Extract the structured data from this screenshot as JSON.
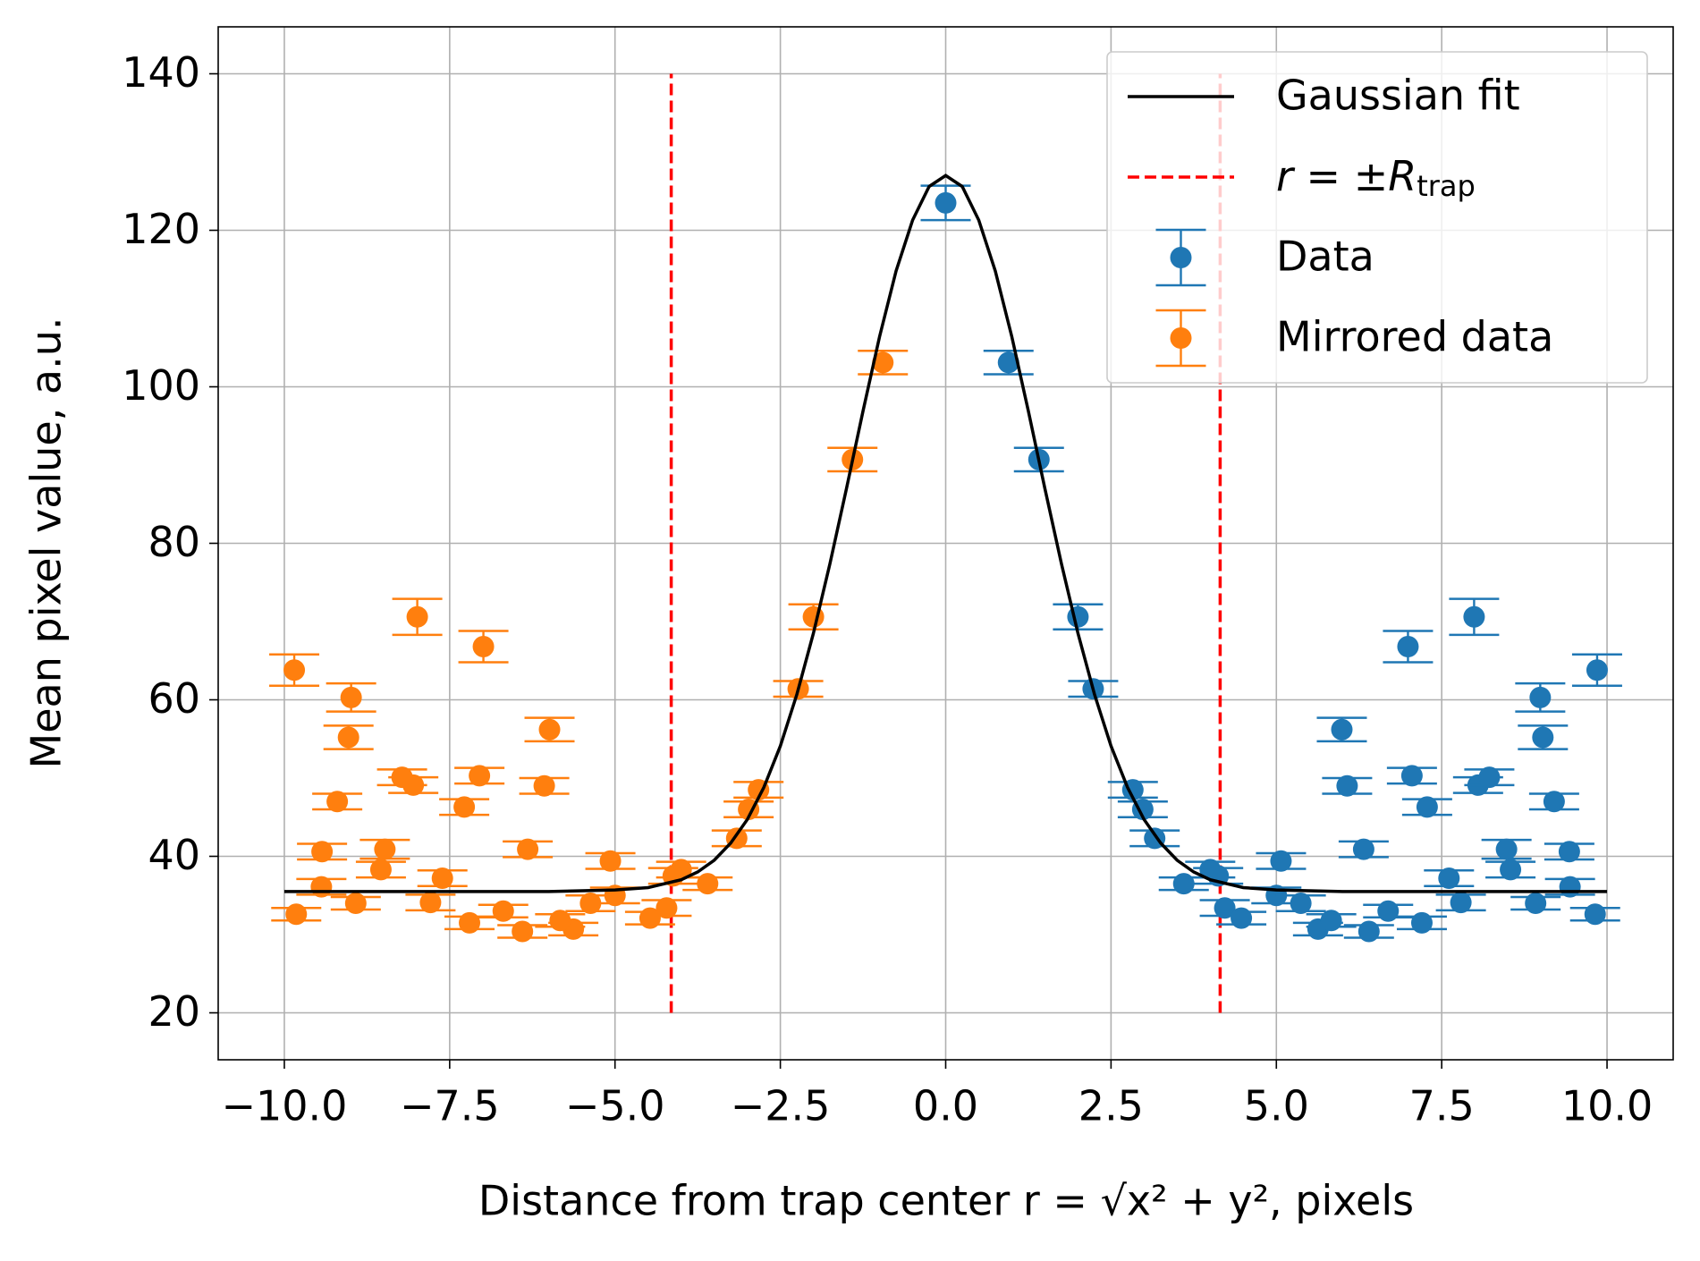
{
  "chart_data": {
    "type": "errorbar",
    "xlabel": "Distance from trap center r = √x² + y², pixels",
    "ylabel": "Mean pixel value, a.u.",
    "xlim": [
      -11,
      11
    ],
    "ylim": [
      14,
      146
    ],
    "xticks": [
      {
        "value": -10,
        "label": "−10.0"
      },
      {
        "value": -7.5,
        "label": "−7.5"
      },
      {
        "value": -5,
        "label": "−5.0"
      },
      {
        "value": -2.5,
        "label": "−2.5"
      },
      {
        "value": 0,
        "label": "0.0"
      },
      {
        "value": 2.5,
        "label": "2.5"
      },
      {
        "value": 5,
        "label": "5.0"
      },
      {
        "value": 7.5,
        "label": "7.5"
      },
      {
        "value": 10,
        "label": "10.0"
      }
    ],
    "yticks": [
      20,
      40,
      60,
      80,
      100,
      120,
      140
    ],
    "grid": true,
    "legend": "upper right",
    "series": [
      {
        "name": "Gaussian fit",
        "type": "line",
        "color": "#000000",
        "x": [
          -10,
          -8,
          -6,
          -5,
          -4.5,
          -4,
          -3.75,
          -3.5,
          -3.25,
          -3,
          -2.75,
          -2.5,
          -2.25,
          -2,
          -1.75,
          -1.5,
          -1.25,
          -1,
          -0.75,
          -0.5,
          -0.25,
          0,
          0.25,
          0.5,
          0.75,
          1,
          1.25,
          1.5,
          1.75,
          2,
          2.25,
          2.5,
          2.75,
          3,
          3.25,
          3.5,
          3.75,
          4,
          4.5,
          5,
          6,
          8,
          10
        ],
        "values": [
          35.5,
          35.5,
          35.5,
          35.7,
          36.0,
          37.0,
          38.0,
          39.5,
          41.7,
          44.7,
          48.8,
          54.1,
          60.7,
          68.5,
          77.4,
          87.0,
          96.9,
          106.4,
          114.8,
          121.3,
          125.6,
          127,
          125.6,
          121.3,
          114.8,
          106.4,
          96.9,
          87.0,
          77.4,
          68.5,
          60.7,
          54.1,
          48.8,
          44.7,
          41.7,
          39.5,
          38.0,
          37.0,
          36.0,
          35.7,
          35.5,
          35.5,
          35.5
        ]
      },
      {
        "name": "r = ±R",
        "name_sub": "trap",
        "type": "vline",
        "color": "#ff0000",
        "x": [
          -4.15,
          4.15
        ],
        "ymin": 20,
        "ymax": 140
      },
      {
        "name": "Data",
        "type": "errorbar",
        "color": "#1f77b4",
        "x": [
          0.0,
          0.95,
          1.41,
          2.0,
          2.23,
          2.83,
          2.98,
          3.16,
          3.6,
          4.0,
          4.12,
          4.22,
          4.47,
          5.0,
          5.07,
          5.37,
          5.63,
          5.83,
          5.99,
          6.07,
          6.32,
          6.4,
          6.69,
          6.99,
          7.05,
          7.2,
          7.28,
          7.61,
          7.79,
          7.99,
          8.05,
          8.22,
          8.48,
          8.54,
          8.92,
          8.99,
          9.03,
          9.2,
          9.43,
          9.44,
          9.82,
          9.85
        ],
        "values": [
          123.5,
          103.1,
          90.7,
          70.6,
          61.4,
          48.5,
          46,
          42.3,
          36.5,
          38.3,
          37.5,
          33.4,
          32.1,
          35,
          39.4,
          34,
          30.7,
          31.8,
          56.2,
          49,
          40.9,
          30.4,
          33,
          66.8,
          50.3,
          31.5,
          46.3,
          37.2,
          34.1,
          70.6,
          49.1,
          50.1,
          40.9,
          38.3,
          34,
          60.3,
          55.2,
          47,
          40.6,
          36.1,
          32.6,
          63.8
        ],
        "errors": [
          2.2,
          1.5,
          1.5,
          1.6,
          1,
          1,
          1,
          1,
          0.8,
          1,
          1,
          1,
          0.8,
          1,
          1,
          1,
          0.8,
          0.8,
          1.5,
          1,
          1,
          0.8,
          0.8,
          2,
          1,
          0.8,
          1,
          1,
          1,
          2.3,
          1,
          1,
          1.2,
          1,
          0.8,
          1.8,
          1.5,
          1,
          1,
          1,
          0.8,
          2
        ]
      },
      {
        "name": "Mirrored data",
        "type": "errorbar",
        "color": "#ff7f0e",
        "x": [
          -0.95,
          -1.41,
          -2.0,
          -2.23,
          -2.83,
          -2.98,
          -3.16,
          -3.6,
          -4.0,
          -4.12,
          -4.22,
          -4.47,
          -5.0,
          -5.07,
          -5.37,
          -5.63,
          -5.83,
          -5.99,
          -6.07,
          -6.32,
          -6.4,
          -6.69,
          -6.99,
          -7.05,
          -7.2,
          -7.28,
          -7.61,
          -7.79,
          -7.99,
          -8.05,
          -8.22,
          -8.48,
          -8.54,
          -8.92,
          -8.99,
          -9.03,
          -9.2,
          -9.43,
          -9.44,
          -9.82,
          -9.85
        ],
        "values": [
          103.1,
          90.7,
          70.6,
          61.4,
          48.5,
          46,
          42.3,
          36.5,
          38.3,
          37.5,
          33.4,
          32.1,
          35,
          39.4,
          34,
          30.7,
          31.8,
          56.2,
          49,
          40.9,
          30.4,
          33,
          66.8,
          50.3,
          31.5,
          46.3,
          37.2,
          34.1,
          70.6,
          49.1,
          50.1,
          40.9,
          38.3,
          34,
          60.3,
          55.2,
          47,
          40.6,
          36.1,
          32.6,
          63.8
        ],
        "errors": [
          1.5,
          1.5,
          1.6,
          1,
          1,
          1,
          1,
          0.8,
          1,
          1,
          1,
          0.8,
          1,
          1,
          1,
          0.8,
          0.8,
          1.5,
          1,
          1,
          0.8,
          0.8,
          2,
          1,
          0.8,
          1,
          1,
          1,
          2.3,
          1,
          1,
          1.2,
          1,
          0.8,
          1.8,
          1.5,
          1,
          1,
          1,
          0.8,
          2
        ]
      }
    ]
  }
}
